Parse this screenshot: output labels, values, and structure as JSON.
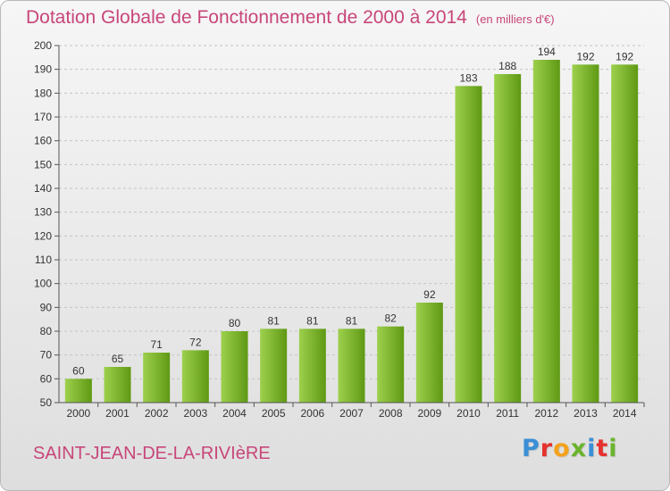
{
  "header": {
    "title": "Dotation Globale de Fonctionnement de 2000 à 2014",
    "unit_note": "(en milliers d'€)"
  },
  "footer": {
    "commune": "SAINT-JEAN-DE-LA-RIVIèRE",
    "brand": "Proxiti",
    "brand_letter_colors": [
      "#3a8fd6",
      "#e6312e",
      "#f4a21c",
      "#6ab42d",
      "#3a8fd6",
      "#e6312e",
      "#6ab42d"
    ]
  },
  "colors": {
    "title": "#c8467a",
    "bar_light": "#9dd04d",
    "bar_dark": "#5f9914",
    "grid": "#c4c4c4",
    "axis": "#555555"
  },
  "chart_data": {
    "type": "bar",
    "title": "Dotation Globale de Fonctionnement de 2000 à 2014",
    "subtitle": "(en milliers d'€)",
    "xlabel": "",
    "ylabel": "",
    "categories": [
      "2000",
      "2001",
      "2002",
      "2003",
      "2004",
      "2005",
      "2006",
      "2007",
      "2008",
      "2009",
      "2010",
      "2011",
      "2012",
      "2013",
      "2014"
    ],
    "values": [
      60,
      65,
      71,
      72,
      80,
      81,
      81,
      81,
      82,
      92,
      183,
      188,
      194,
      192,
      192
    ],
    "ylim": [
      50,
      200
    ],
    "yticks": [
      50,
      60,
      70,
      80,
      90,
      100,
      110,
      120,
      130,
      140,
      150,
      160,
      170,
      180,
      190,
      200
    ],
    "grid": true,
    "legend": "none"
  }
}
